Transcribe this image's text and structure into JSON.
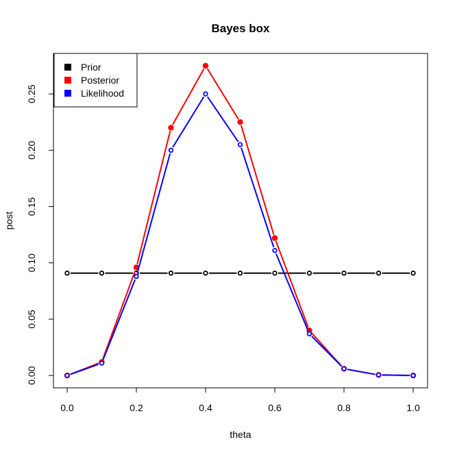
{
  "chart_data": {
    "type": "line",
    "title": "Bayes box",
    "xlabel": "theta",
    "ylabel": "post",
    "xlim": [
      0.0,
      1.0
    ],
    "ylim": [
      0.0,
      0.275
    ],
    "x": [
      0.0,
      0.1,
      0.2,
      0.3,
      0.4,
      0.5,
      0.6,
      0.7,
      0.8,
      0.9,
      1.0
    ],
    "x_ticks": [
      "0.0",
      "0.2",
      "0.4",
      "0.6",
      "0.8",
      "1.0"
    ],
    "y_ticks": [
      "0.00",
      "0.05",
      "0.10",
      "0.15",
      "0.20",
      "0.25"
    ],
    "legend_position": "top-left",
    "grid": false,
    "series": [
      {
        "name": "Prior",
        "color": "#000000",
        "marker": "open-circle",
        "values": [
          0.0909,
          0.0909,
          0.0909,
          0.0909,
          0.0909,
          0.0909,
          0.0909,
          0.0909,
          0.0909,
          0.0909,
          0.0909
        ]
      },
      {
        "name": "Posterior",
        "color": "#ff0000",
        "marker": "filled-circle",
        "values": [
          0.0,
          0.012,
          0.096,
          0.22,
          0.275,
          0.225,
          0.122,
          0.04,
          0.006,
          0.0005,
          0.0
        ]
      },
      {
        "name": "Likelihood",
        "color": "#0000ff",
        "marker": "open-circle",
        "values": [
          0.0,
          0.011,
          0.088,
          0.2,
          0.25,
          0.205,
          0.111,
          0.037,
          0.006,
          0.0005,
          0.0
        ]
      }
    ]
  }
}
